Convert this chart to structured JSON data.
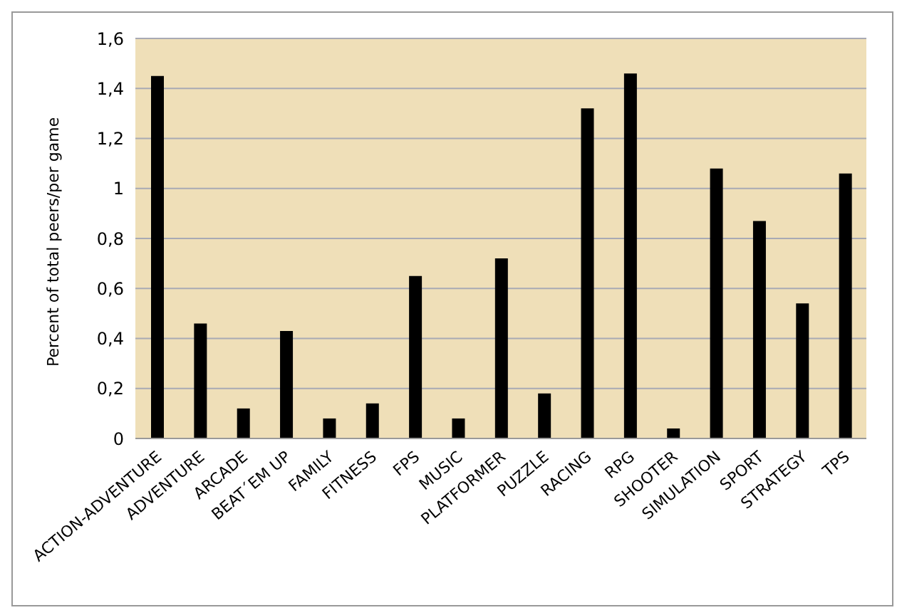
{
  "chart_data": {
    "type": "bar",
    "ylabel": "Percent of total peers/per game",
    "categories": [
      "ACTION-ADVENTURE",
      "ADVENTURE",
      "ARCADE",
      "BEAT´EM UP",
      "FAMILY",
      "FITNESS",
      "FPS",
      "MUSIC",
      "PLATFORMER",
      "PUZZLE",
      "RACING",
      "RPG",
      "SHOOTER",
      "SIMULATION",
      "SPORT",
      "STRATEGY",
      "TPS"
    ],
    "values": [
      1.45,
      0.46,
      0.12,
      0.43,
      0.08,
      0.14,
      0.65,
      0.08,
      0.72,
      0.18,
      1.32,
      1.46,
      0.04,
      1.08,
      0.87,
      0.54,
      1.06
    ],
    "color": "#000000",
    "ylim": [
      0,
      1.6
    ],
    "yticks": [
      0,
      {
        "value": 0.2,
        "label": "0,2"
      },
      {
        "value": 0.4,
        "label": "0,4"
      },
      {
        "value": 0.6,
        "label": "0,6"
      },
      {
        "value": 0.8,
        "label": "0,8"
      },
      1,
      {
        "value": 1.2,
        "label": "1,2"
      },
      {
        "value": 1.4,
        "label": "1,4"
      },
      {
        "value": 1.6,
        "label": "1,6"
      }
    ],
    "grid": "y",
    "legend": false
  }
}
